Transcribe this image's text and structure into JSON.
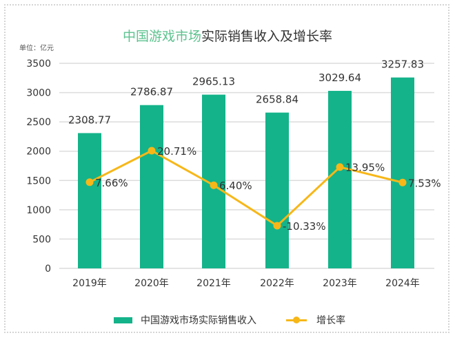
{
  "title": {
    "highlight": "中国游戏市场",
    "rest": "实际销售收入及增长率"
  },
  "unit_label": "单位：亿元",
  "colors": {
    "bar": "#14b38a",
    "line": "#f7b718",
    "title_highlight": "#5cc28f"
  },
  "chart_data": {
    "type": "bar+line",
    "categories": [
      "2019年",
      "2020年",
      "2021年",
      "2022年",
      "2023年",
      "2024年"
    ],
    "series": [
      {
        "name": "中国游戏市场实际销售收入",
        "type": "bar",
        "values": [
          2308.77,
          2786.87,
          2965.13,
          2658.84,
          3029.64,
          3257.83
        ],
        "labels": [
          "2308.77",
          "2786.87",
          "2965.13",
          "2658.84",
          "3029.64",
          "3257.83"
        ]
      },
      {
        "name": "增长率",
        "type": "line",
        "values": [
          7.66,
          20.71,
          6.4,
          -10.33,
          13.95,
          7.53
        ],
        "labels": [
          "7.66%",
          "20.71%",
          "6.40%",
          "-10.33%",
          "13.95%",
          "7.53%"
        ]
      }
    ],
    "yticks": [
      "0",
      "500",
      "1000",
      "1500",
      "2000",
      "2500",
      "3000",
      "3500"
    ],
    "ylim": [
      0,
      3500
    ],
    "grid": true,
    "legend": "bottom"
  }
}
